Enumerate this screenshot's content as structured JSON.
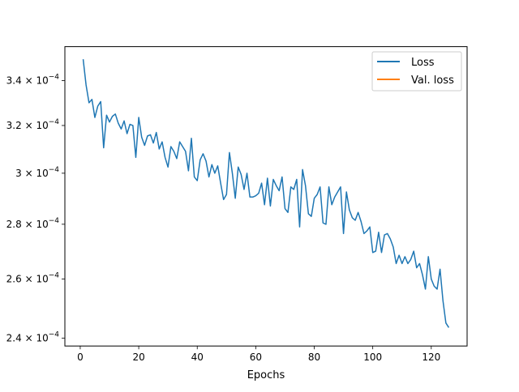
{
  "chart_data": {
    "type": "line",
    "title": "",
    "xlabel": "Epochs",
    "ylabel": "",
    "xlim": [
      -5.25,
      132.25
    ],
    "ylim": [
      0.0002375,
      0.000356
    ],
    "y_scale": "log",
    "x_ticks": [
      0,
      20,
      40,
      60,
      80,
      100,
      120
    ],
    "x_tick_labels": [
      "0",
      "20",
      "40",
      "60",
      "80",
      "100",
      "120"
    ],
    "y_ticks": [
      {
        "value": 0.00034,
        "mantissa": "3.4 × 10",
        "exp": "−4"
      },
      {
        "value": 0.00032,
        "mantissa": "3.2 × 10",
        "exp": "−4"
      },
      {
        "value": 0.0003,
        "mantissa": "3 × 10",
        "exp": "−4"
      },
      {
        "value": 0.00028,
        "mantissa": "2.8 × 10",
        "exp": "−4"
      },
      {
        "value": 0.00026,
        "mantissa": "2.6 × 10",
        "exp": "−4"
      },
      {
        "value": 0.00024,
        "mantissa": "2.4 × 10",
        "exp": "−4"
      }
    ],
    "grid": false,
    "legend_position": "top-right",
    "series": [
      {
        "name": "Loss",
        "color": "#1f77b4",
        "x": [
          1,
          2,
          3,
          4,
          5,
          6,
          7,
          8,
          9,
          10,
          11,
          12,
          13,
          14,
          15,
          16,
          17,
          18,
          19,
          20,
          21,
          22,
          23,
          24,
          25,
          26,
          27,
          28,
          29,
          30,
          31,
          32,
          33,
          34,
          35,
          36,
          37,
          38,
          39,
          40,
          41,
          42,
          43,
          44,
          45,
          46,
          47,
          48,
          49,
          50,
          51,
          52,
          53,
          54,
          55,
          56,
          57,
          58,
          59,
          60,
          61,
          62,
          63,
          64,
          65,
          66,
          67,
          68,
          69,
          70,
          71,
          72,
          73,
          74,
          75,
          76,
          77,
          78,
          79,
          80,
          81,
          82,
          83,
          84,
          85,
          86,
          87,
          88,
          89,
          90,
          91,
          92,
          93,
          94,
          95,
          96,
          97,
          98,
          99,
          100,
          101,
          102,
          103,
          104,
          105,
          106,
          107,
          108,
          109,
          110,
          111,
          112,
          113,
          114,
          115,
          116,
          117,
          118,
          119,
          120,
          121,
          122,
          123,
          124,
          125,
          126
        ],
        "values": [
          0.00035,
          0.000338,
          0.00033,
          0.0003315,
          0.0003235,
          0.0003285,
          0.0003305,
          0.0003105,
          0.0003245,
          0.0003215,
          0.000324,
          0.000325,
          0.000321,
          0.0003185,
          0.000322,
          0.0003165,
          0.0003205,
          0.00032,
          0.0003065,
          0.0003235,
          0.000315,
          0.0003115,
          0.0003155,
          0.000316,
          0.0003125,
          0.000317,
          0.00031,
          0.000313,
          0.0003065,
          0.0003025,
          0.000311,
          0.000309,
          0.000306,
          0.000313,
          0.000311,
          0.000309,
          0.000301,
          0.0003145,
          0.0002985,
          0.000297,
          0.0003055,
          0.000308,
          0.000305,
          0.0002985,
          0.0003035,
          0.0003,
          0.000303,
          0.000296,
          0.0002895,
          0.0002915,
          0.0003085,
          0.0003,
          0.00029,
          0.0003025,
          0.0002995,
          0.0002935,
          0.0003,
          0.0002905,
          0.0002905,
          0.000291,
          0.000292,
          0.000296,
          0.0002875,
          0.000298,
          0.000287,
          0.0002975,
          0.000295,
          0.000293,
          0.0002985,
          0.000286,
          0.0002845,
          0.0002945,
          0.0002935,
          0.0002975,
          0.000279,
          0.0003015,
          0.000295,
          0.000284,
          0.000283,
          0.00029,
          0.0002915,
          0.0002945,
          0.0002805,
          0.00028,
          0.0002945,
          0.0002875,
          0.0002905,
          0.0002925,
          0.0002945,
          0.0002765,
          0.0002925,
          0.0002855,
          0.0002825,
          0.0002815,
          0.0002845,
          0.000281,
          0.0002765,
          0.0002775,
          0.000279,
          0.0002695,
          0.00027,
          0.000277,
          0.0002695,
          0.000276,
          0.0002765,
          0.0002745,
          0.0002715,
          0.0002655,
          0.0002685,
          0.0002655,
          0.000268,
          0.0002655,
          0.000267,
          0.00027,
          0.000264,
          0.0002655,
          0.0002615,
          0.0002565,
          0.000268,
          0.00026,
          0.0002575,
          0.0002565,
          0.0002635,
          0.0002525,
          0.000245,
          0.0002435
        ]
      },
      {
        "name": "Val. loss",
        "color": "#ff7f0e",
        "x": [],
        "values": []
      }
    ]
  }
}
